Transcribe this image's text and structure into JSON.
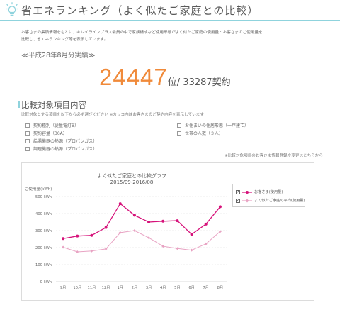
{
  "header": {
    "title": "省エネランキング（よく似たご家庭との比較）",
    "icon": "lightbulb-icon",
    "accent": "#8fd3dd"
  },
  "intro": {
    "line1": "お客さまの集積情報をもとに、キレイライフプラス会員の中で家族構成など使用形態がよく似たご家庭の使用量とお客さまのご使用量を",
    "line2": "比較し、省エネランキング等を表示しています。"
  },
  "period": "≪平成28年8月分実績≫",
  "rank": {
    "position": "24447",
    "position_unit": "位",
    "total": "/ 33287契約",
    "color": "#f08a3a"
  },
  "compare": {
    "title": "比較対象項目内容",
    "desc": "比較対象とする項目を以下から必ず選びください ※カッコ内はお客さまのご契約内容を表示しています",
    "options": [
      {
        "label": "契約種別（従量電灯B）",
        "checked": true
      },
      {
        "label": "お住まいの住居形態（一戸建て）",
        "checked": false
      },
      {
        "label": "契約容量（30A）",
        "checked": false
      },
      {
        "label": "世帯の人数（３人）",
        "checked": false
      },
      {
        "label": "給湯機器の熱源（プロパンガス）",
        "checked": false
      },
      {
        "label": "調理機器の熱源（プロパンガス）",
        "checked": false
      }
    ],
    "note": "※比較対象項目のお客さま情報登録や変更はこちらから"
  },
  "chart_data": {
    "type": "line",
    "title": "よく似たご家庭との比較グラフ",
    "subtitle": "2015/09-2016/08",
    "ylabel": "ご使用量(kWh)",
    "ylim": [
      0,
      500
    ],
    "yticks": [
      {
        "value": 0,
        "label": "0 kWh"
      },
      {
        "value": 100,
        "label": "100 kWh"
      },
      {
        "value": 200,
        "label": "200 kWh"
      },
      {
        "value": 300,
        "label": "300 kWh"
      },
      {
        "value": 400,
        "label": "400 kWh"
      },
      {
        "value": 500,
        "label": "500 kWh"
      }
    ],
    "categories": [
      "9月",
      "10月",
      "11月",
      "12月",
      "1月",
      "2月",
      "3月",
      "4月",
      "5月",
      "6月",
      "7月",
      "8月"
    ],
    "grid": true,
    "legend_position": "top-right",
    "series": [
      {
        "name": "お客さま(使用量)",
        "color": "#d6127a",
        "values": [
          253,
          268,
          272,
          318,
          458,
          390,
          350,
          355,
          358,
          278,
          338,
          440
        ],
        "checked": true
      },
      {
        "name": "よく似たご家庭の平均(使用量)",
        "color": "#e8a3c3",
        "values": [
          202,
          175,
          180,
          192,
          288,
          300,
          258,
          208,
          195,
          185,
          222,
          295
        ],
        "checked": true
      }
    ]
  }
}
